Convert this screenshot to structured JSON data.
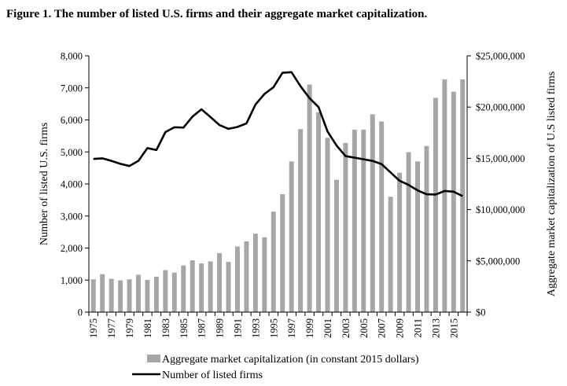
{
  "chart_data": {
    "type": "bar+line",
    "title": "Figure 1. The number of listed U.S. firms and their aggregate market capitalization.",
    "ylabel_left": "Number of  listed U.S. firms",
    "ylabel_right": "Aggregate market capitalization of U.S listed firms",
    "ylim_left": [
      0,
      8000
    ],
    "ylim_right": [
      0,
      25000000
    ],
    "left_ticks": [
      "0",
      "1,000",
      "2,000",
      "3,000",
      "4,000",
      "5,000",
      "6,000",
      "7,000",
      "8,000"
    ],
    "right_ticks": [
      "$0",
      "$5,000,000",
      "$10,000,000",
      "$15,000,000",
      "$20,000,000",
      "$25,000,000"
    ],
    "x": [
      1975,
      1976,
      1977,
      1978,
      1979,
      1980,
      1981,
      1982,
      1983,
      1984,
      1985,
      1986,
      1987,
      1988,
      1989,
      1990,
      1991,
      1992,
      1993,
      1994,
      1995,
      1996,
      1997,
      1998,
      1999,
      2000,
      2001,
      2002,
      2003,
      2004,
      2005,
      2006,
      2007,
      2008,
      2009,
      2010,
      2011,
      2012,
      2013,
      2014,
      2015,
      2016
    ],
    "x_tick_labels": [
      "1975",
      "1977",
      "1979",
      "1981",
      "1983",
      "1985",
      "1987",
      "1989",
      "1991",
      "1993",
      "1995",
      "1997",
      "1999",
      "2001",
      "2003",
      "2005",
      "2007",
      "2009",
      "2011",
      "2013",
      "2015"
    ],
    "series": [
      {
        "name": "Aggregate market capitalization (in constant 2015 dollars)",
        "kind": "bar",
        "axis": "right",
        "color": "#a6a6a6",
        "values": [
          3200000,
          3700000,
          3250000,
          3100000,
          3200000,
          3650000,
          3150000,
          3450000,
          4100000,
          3850000,
          4550000,
          5050000,
          4750000,
          4950000,
          5750000,
          4900000,
          6400000,
          6900000,
          7650000,
          7300000,
          9800000,
          11500000,
          14700000,
          17850000,
          22200000,
          19500000,
          17000000,
          12900000,
          16500000,
          17800000,
          17800000,
          19300000,
          18600000,
          11250000,
          13600000,
          15600000,
          14700000,
          16200000,
          20900000,
          22700000,
          21500000,
          22700000
        ]
      },
      {
        "name": "Number of listed firms",
        "kind": "line",
        "axis": "left",
        "color": "#000000",
        "values": [
          4780,
          4800,
          4720,
          4630,
          4560,
          4720,
          5120,
          5060,
          5620,
          5770,
          5760,
          6100,
          6330,
          6090,
          5840,
          5720,
          5780,
          5890,
          6480,
          6810,
          7020,
          7470,
          7490,
          7050,
          6680,
          6400,
          5640,
          5200,
          4870,
          4820,
          4770,
          4720,
          4620,
          4360,
          4100,
          3970,
          3800,
          3680,
          3670,
          3780,
          3760,
          3620
        ]
      }
    ],
    "legend_position": "bottom",
    "grid": false
  }
}
